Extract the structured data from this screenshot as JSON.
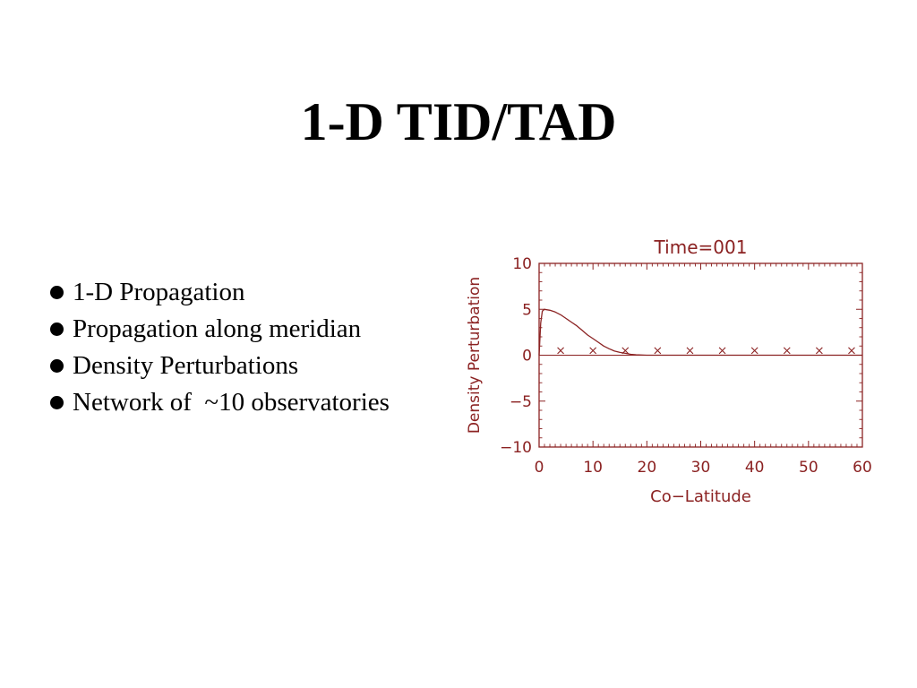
{
  "slide": {
    "title": "1-D TID/TAD",
    "bullets": [
      "1-D Propagation",
      "Propagation along meridian",
      "Density Perturbations",
      "Network of  ~10 observatories"
    ]
  },
  "colors": {
    "plot": "#8b2222",
    "text": "#000000",
    "background": "#ffffff"
  },
  "chart_data": {
    "type": "line",
    "title": "Time=001",
    "xlabel": "Co−Latitude",
    "ylabel": "Density Perturbation",
    "xlim": [
      0,
      60
    ],
    "ylim": [
      -10,
      10
    ],
    "xticks": [
      0,
      10,
      20,
      30,
      40,
      50,
      60
    ],
    "yticks": [
      10,
      5,
      0,
      -5,
      -10
    ],
    "ytick_labels": [
      "10",
      "5",
      "0",
      "−5",
      "−10"
    ],
    "zero_line": true,
    "series": [
      {
        "kind": "line",
        "x": [
          0,
          0.3,
          0.6,
          1,
          2,
          3,
          4,
          5,
          6,
          7,
          8,
          9,
          10,
          11,
          12,
          13,
          14,
          15,
          16,
          17,
          18,
          19,
          20,
          60
        ],
        "y": [
          0,
          3.5,
          4.8,
          5.0,
          4.9,
          4.7,
          4.4,
          4.0,
          3.6,
          3.2,
          2.7,
          2.2,
          1.8,
          1.4,
          1.0,
          0.7,
          0.45,
          0.3,
          0.2,
          0.1,
          0.05,
          0.02,
          0,
          0
        ]
      },
      {
        "kind": "markers",
        "marker": "x",
        "x": [
          4,
          10,
          16,
          22,
          28,
          34,
          40,
          46,
          52,
          58
        ],
        "y": [
          0.5,
          0.5,
          0.5,
          0.5,
          0.5,
          0.5,
          0.5,
          0.5,
          0.5,
          0.5
        ]
      }
    ]
  }
}
